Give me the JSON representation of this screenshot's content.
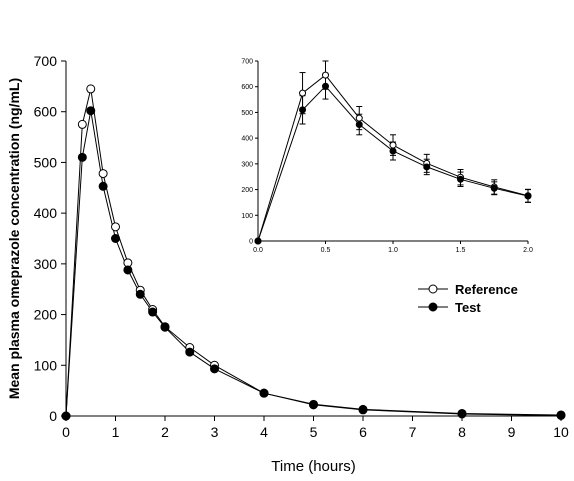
{
  "chart_data": [
    {
      "type": "line",
      "panel": "main",
      "xlabel": "Time (hours)",
      "ylabel": "Mean plasma omeprazole concentration (ng/mL)",
      "xlim": [
        0,
        10
      ],
      "ylim": [
        0,
        700
      ],
      "xticks": [
        "0",
        "1",
        "2",
        "3",
        "4",
        "5",
        "6",
        "7",
        "8",
        "9",
        "10"
      ],
      "yticks": [
        "0",
        "100",
        "200",
        "300",
        "400",
        "500",
        "600",
        "700"
      ],
      "legend_position": "center-right",
      "series": [
        {
          "name": "Reference",
          "marker": "open-circle",
          "x": [
            0,
            0.33,
            0.5,
            0.75,
            1,
            1.25,
            1.5,
            1.75,
            2,
            2.5,
            3,
            4,
            5,
            6,
            8,
            10
          ],
          "y": [
            0,
            575,
            645,
            478,
            373,
            302,
            248,
            210,
            176,
            135,
            100,
            45,
            23,
            13,
            5,
            2
          ]
        },
        {
          "name": "Test",
          "marker": "filled-circle",
          "x": [
            0,
            0.33,
            0.5,
            0.75,
            1,
            1.25,
            1.5,
            1.75,
            2,
            2.5,
            3,
            4,
            5,
            6,
            8,
            10
          ],
          "y": [
            0,
            510,
            602,
            453,
            350,
            288,
            240,
            205,
            175,
            126,
            93,
            45,
            22,
            12,
            4,
            1
          ]
        }
      ]
    },
    {
      "type": "line",
      "panel": "inset",
      "xlim": [
        0,
        2
      ],
      "ylim": [
        0,
        700
      ],
      "xticks": [
        "0.0",
        "0.5",
        "1.0",
        "1.5",
        "2.0"
      ],
      "yticks": [
        "0",
        "100",
        "200",
        "300",
        "400",
        "500",
        "600",
        "700"
      ],
      "series": [
        {
          "name": "Reference",
          "marker": "open-circle",
          "x": [
            0,
            0.33,
            0.5,
            0.75,
            1,
            1.25,
            1.5,
            1.75,
            2
          ],
          "y": [
            0,
            575,
            645,
            478,
            373,
            302,
            248,
            210,
            176
          ],
          "error": [
            0,
            80,
            55,
            45,
            40,
            35,
            30,
            28,
            25
          ]
        },
        {
          "name": "Test",
          "marker": "filled-circle",
          "x": [
            0,
            0.33,
            0.5,
            0.75,
            1,
            1.25,
            1.5,
            1.75,
            2
          ],
          "y": [
            0,
            510,
            602,
            453,
            350,
            288,
            240,
            205,
            175
          ],
          "error": [
            0,
            55,
            50,
            40,
            35,
            30,
            28,
            25,
            25
          ]
        }
      ]
    }
  ]
}
